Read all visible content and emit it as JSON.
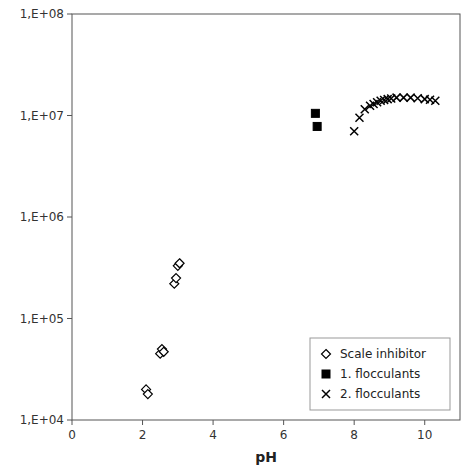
{
  "chart_data": {
    "type": "scatter",
    "xlabel": "pH",
    "xlim": [
      0,
      11
    ],
    "xticks": [
      0,
      2,
      4,
      6,
      8,
      10
    ],
    "ylim": [
      10000,
      100000000
    ],
    "yticks": [
      {
        "value": 10000,
        "label": "1,E+04"
      },
      {
        "value": 100000,
        "label": "1,E+05"
      },
      {
        "value": 1000000,
        "label": "1,E+06"
      },
      {
        "value": 10000000,
        "label": "1,E+07"
      },
      {
        "value": 100000000,
        "label": "1,E+08"
      }
    ],
    "log": "y",
    "grid": false,
    "legend": "lower right",
    "series": [
      {
        "name": "Scale inhibitor",
        "color": "#000000",
        "marker": "diamond",
        "x": [
          2.1,
          2.15,
          2.5,
          2.55,
          2.6,
          2.9,
          2.95,
          3.0,
          3.05
        ],
        "values": [
          20000.0,
          18000.0,
          45000.0,
          50000.0,
          47000.0,
          220000.0,
          250000.0,
          330000.0,
          350000.0
        ]
      },
      {
        "name": "1. flocculants",
        "color": "#000000",
        "marker": "square",
        "x": [
          6.9,
          6.95
        ],
        "values": [
          10500000.0,
          7800000.0
        ]
      },
      {
        "name": "2. flocculants",
        "color": "#000000",
        "marker": "x",
        "x": [
          8.0,
          8.15,
          8.3,
          8.45,
          8.55,
          8.65,
          8.75,
          8.85,
          8.95,
          9.05,
          9.2,
          9.4,
          9.6,
          9.8,
          10.0,
          10.15,
          10.3
        ],
        "values": [
          7000000.0,
          9500000.0,
          11500000.0,
          12500000.0,
          13000000.0,
          13500000.0,
          14000000.0,
          14200000.0,
          14500000.0,
          14700000.0,
          15000000.0,
          15000000.0,
          15000000.0,
          14800000.0,
          14500000.0,
          14300000.0,
          14000000.0
        ]
      }
    ]
  }
}
